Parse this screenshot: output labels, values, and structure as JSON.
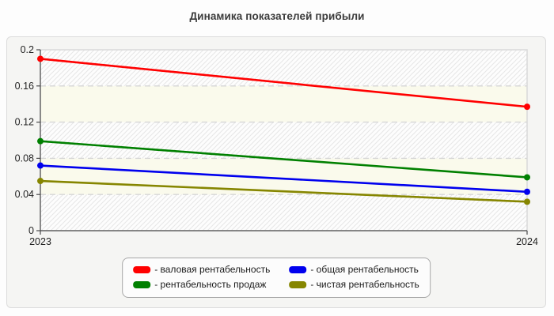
{
  "page_title": "Динамика показателей прибыли",
  "chart_data": {
    "type": "line",
    "title": "Динамика показателей прибыли",
    "x": [
      "2023",
      "2024"
    ],
    "ylim": [
      0,
      0.2
    ],
    "yticks": [
      0,
      0.04,
      0.08,
      0.12,
      0.16,
      0.2
    ],
    "ytick_labels": [
      "0",
      "0.04",
      "0.08",
      "0.12",
      "0.16",
      "0.2"
    ],
    "grid": "horizontal-dashed",
    "background_bands": "alternating-hatch-and-cream",
    "legend_position": "bottom-center",
    "legend_order": [
      0,
      2,
      1,
      3
    ],
    "series": [
      {
        "name": "валовая рентабельность",
        "legend_label": "- валовая рентабельность",
        "color": "#ff0000",
        "values": [
          0.19,
          0.137
        ]
      },
      {
        "name": "рентабельность продаж",
        "legend_label": "- рентабельность продаж",
        "color": "#008000",
        "values": [
          0.099,
          0.059
        ]
      },
      {
        "name": "общая рентабельность",
        "legend_label": "- общая рентабельность",
        "color": "#0000ee",
        "values": [
          0.072,
          0.043
        ]
      },
      {
        "name": "чистая рентабельность",
        "legend_label": "- чистая рентабельность",
        "color": "#868600",
        "values": [
          0.055,
          0.032
        ]
      }
    ]
  },
  "styles": {
    "accent_red": "#ff0000",
    "accent_green": "#008000",
    "accent_blue": "#0000ee",
    "accent_olive": "#868600",
    "panel_bg": "#f5f5f3",
    "band_cream": "#fafaec",
    "hatch_line": "#e7e7e7",
    "grid_color": "#d6d6d6",
    "plot_border": "#d9d9d9",
    "axis_color": "#4a4a4a",
    "text_color": "#222222"
  }
}
